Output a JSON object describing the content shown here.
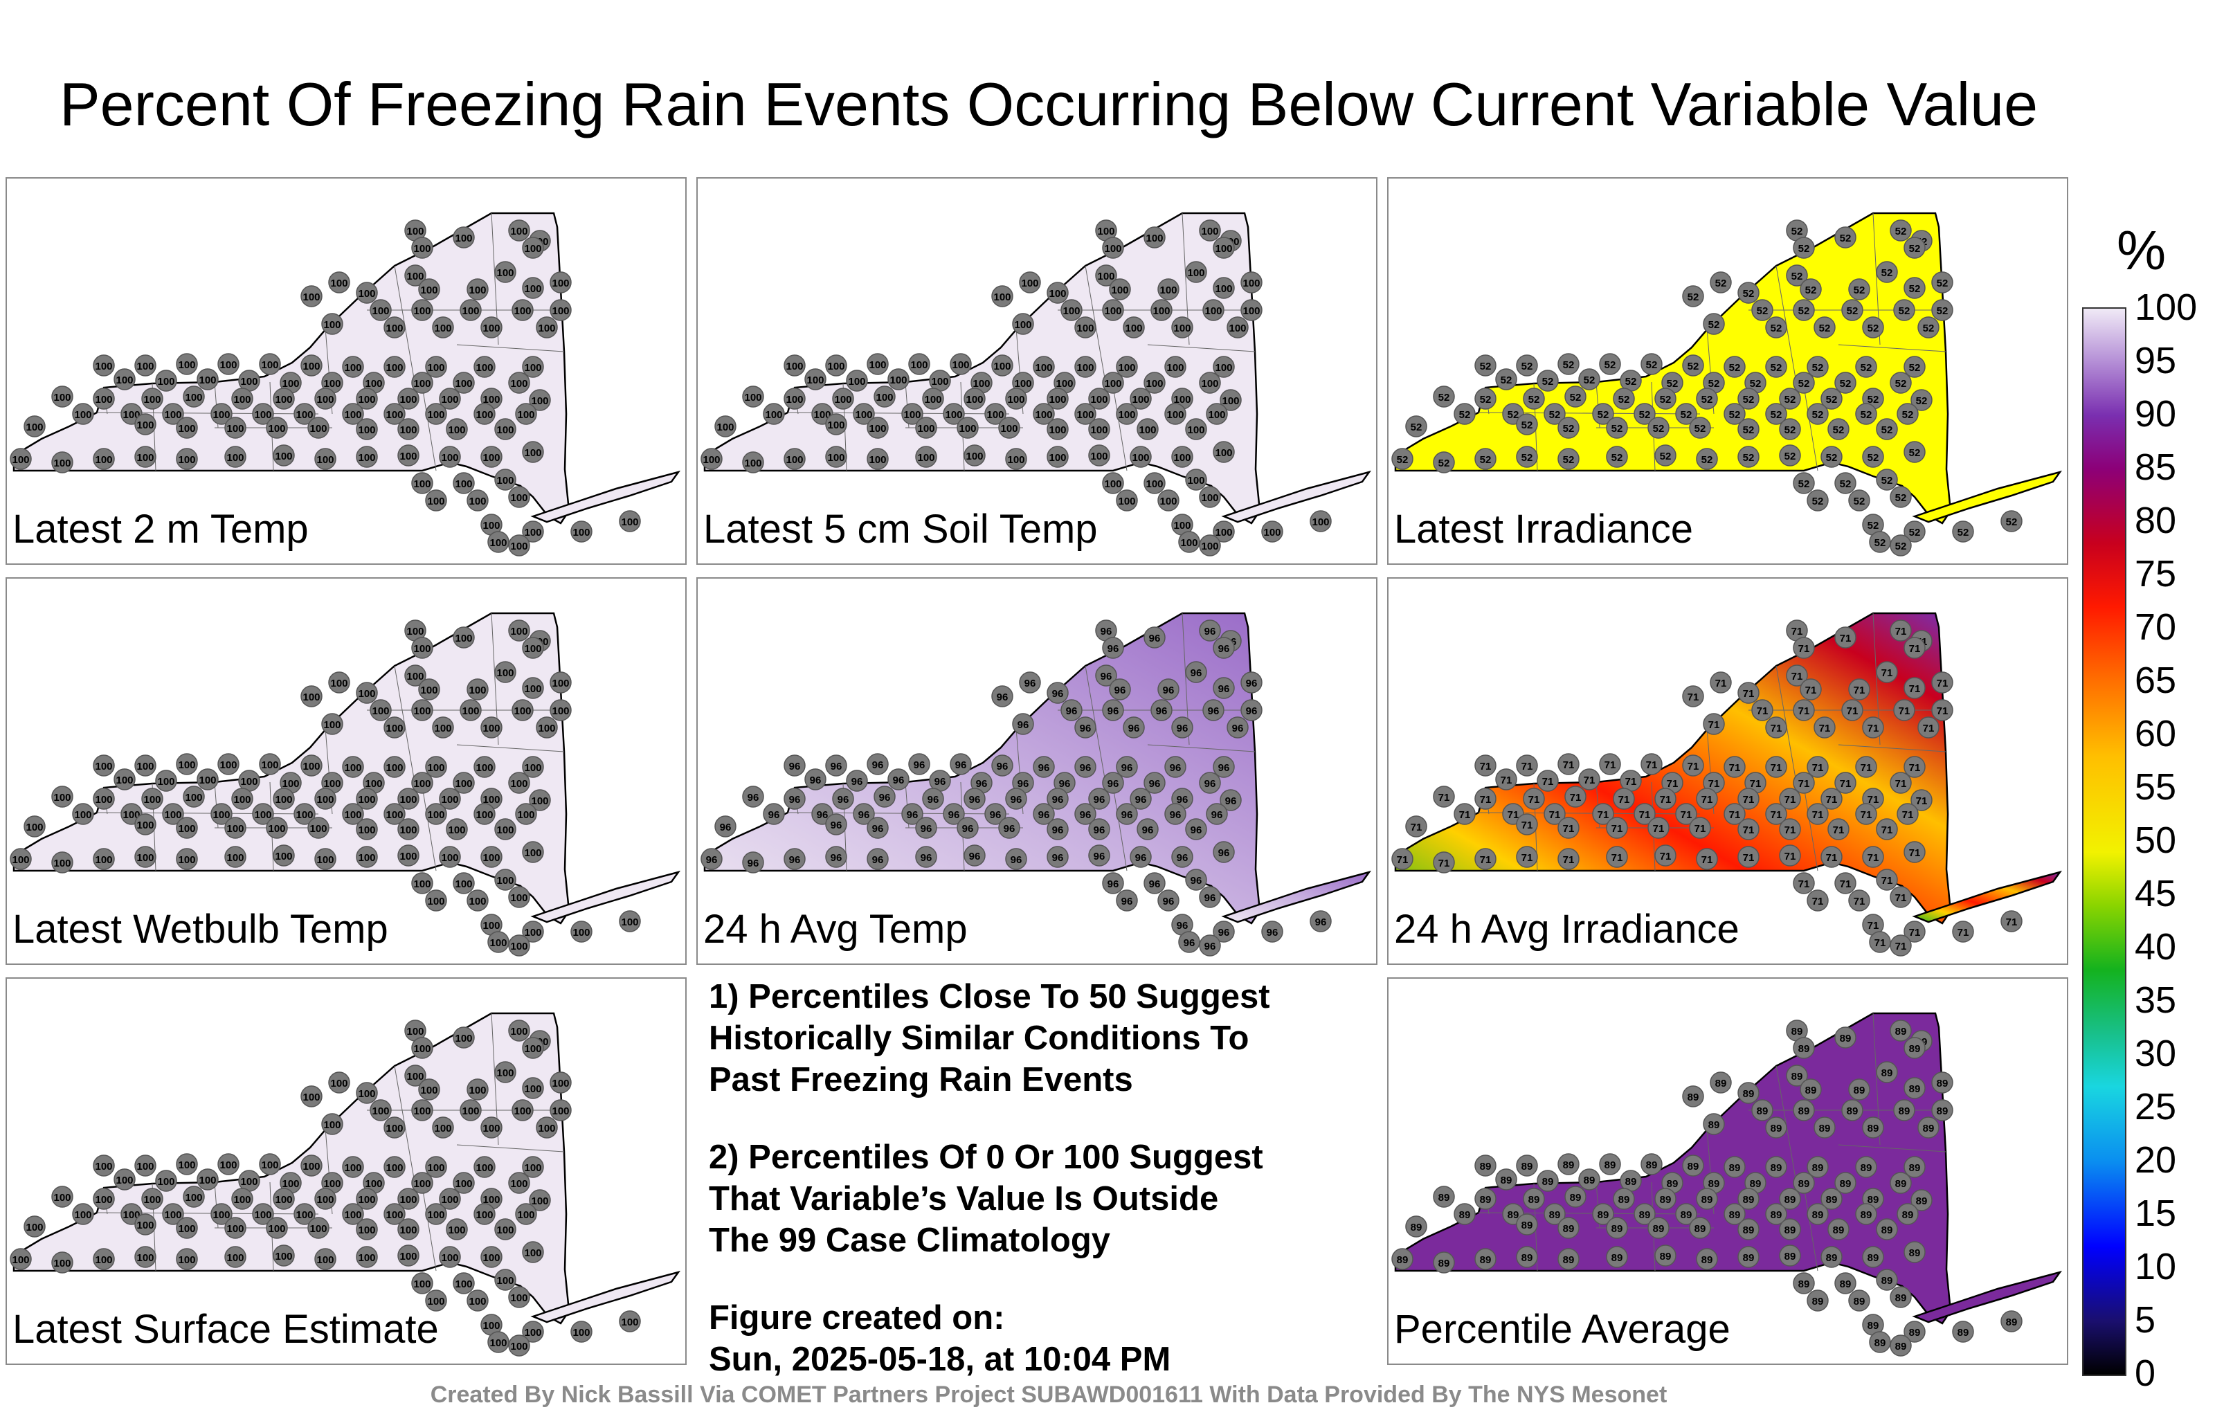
{
  "title": "Percent Of Freezing Rain Events Occurring Below Current Variable Value",
  "panels": [
    {
      "label": "Latest 2 m Temp",
      "fill": "#efe8f3",
      "value": "100"
    },
    {
      "label": "Latest 5 cm Soil Temp",
      "fill": "#efe8f3",
      "value": "100"
    },
    {
      "label": "Latest Irradiance",
      "fill": "#ffff00",
      "value": "52"
    },
    {
      "label": "Latest Wetbulb Temp",
      "fill": "#efe8f3",
      "value": "100"
    },
    {
      "label": "24 h Avg Temp",
      "fill": "#c4a8de",
      "value": "96"
    },
    {
      "label": "24 h Avg Irradiance",
      "fill": "#ff6a00",
      "value": "71"
    },
    {
      "label": "Latest Surface Estimate",
      "fill": "#efe8f3",
      "value": "100"
    },
    {
      "label": "Percentile Average",
      "fill": "#7b2a9c",
      "value": "89"
    }
  ],
  "notes": {
    "line1": "1) Percentiles Close To 50 Suggest",
    "line2": "Historically Similar Conditions To",
    "line3": "Past Freezing Rain Events",
    "line4": "2) Percentiles Of 0 Or 100 Suggest",
    "line5": "That Variable’s Value Is Outside",
    "line6": "The 99 Case Climatology",
    "created_label": "Figure created on:",
    "created_value": "Sun, 2025-05-18, at 10:04 PM"
  },
  "colorbar": {
    "unit": "%",
    "ticks": [
      "100",
      "95",
      "90",
      "85",
      "80",
      "75",
      "70",
      "65",
      "60",
      "55",
      "50",
      "45",
      "40",
      "35",
      "30",
      "25",
      "20",
      "15",
      "10",
      "5",
      "0"
    ]
  },
  "credit": "Created By Nick Bassill Via COMET Partners Project SUBAWD001611 With Data Provided By The NYS Mesonet"
}
